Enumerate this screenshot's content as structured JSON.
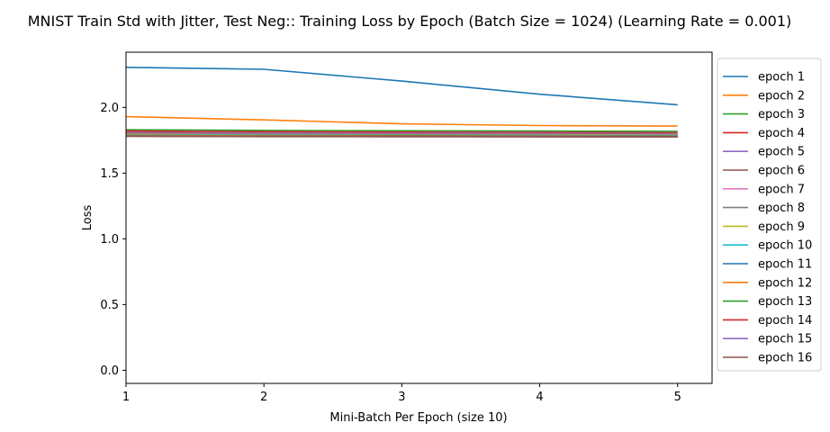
{
  "chart_data": {
    "type": "line",
    "title": "MNIST Train Std with Jitter, Test Neg:: Training Loss by Epoch (Batch Size = 1024) (Learning Rate = 0.001)",
    "xlabel": "Mini-Batch Per Epoch (size 10)",
    "ylabel": "Loss",
    "x": [
      1,
      2,
      3,
      4,
      5
    ],
    "xlim": [
      1,
      5.25
    ],
    "ylim": [
      -0.1,
      2.42
    ],
    "xticks": [
      1,
      2,
      3,
      4,
      5
    ],
    "yticks": [
      0.0,
      0.5,
      1.0,
      1.5,
      2.0
    ],
    "ytick_labels": [
      "0.0",
      "0.5",
      "1.0",
      "1.5",
      "2.0"
    ],
    "grid": false,
    "legend_position": "outside-right",
    "series": [
      {
        "name": "epoch 1",
        "color": "#1f77b4",
        "values": [
          2.305,
          2.29,
          2.2,
          2.1,
          2.02
        ]
      },
      {
        "name": "epoch 2",
        "color": "#ff7f0e",
        "values": [
          1.93,
          1.905,
          1.875,
          1.862,
          1.858
        ]
      },
      {
        "name": "epoch 3",
        "color": "#2ca02c",
        "values": [
          1.83,
          1.825,
          1.822,
          1.82,
          1.818
        ]
      },
      {
        "name": "epoch 4",
        "color": "#d62728",
        "values": [
          1.82,
          1.815,
          1.812,
          1.81,
          1.808
        ]
      },
      {
        "name": "epoch 5",
        "color": "#9467bd",
        "values": [
          1.81,
          1.806,
          1.804,
          1.802,
          1.8
        ]
      },
      {
        "name": "epoch 6",
        "color": "#8c564b",
        "values": [
          1.805,
          1.8,
          1.798,
          1.796,
          1.795
        ]
      },
      {
        "name": "epoch 7",
        "color": "#e377c2",
        "values": [
          1.8,
          1.797,
          1.795,
          1.793,
          1.792
        ]
      },
      {
        "name": "epoch 8",
        "color": "#7f7f7f",
        "values": [
          1.796,
          1.794,
          1.792,
          1.79,
          1.789
        ]
      },
      {
        "name": "epoch 9",
        "color": "#bcbd22",
        "values": [
          1.793,
          1.791,
          1.789,
          1.788,
          1.787
        ]
      },
      {
        "name": "epoch 10",
        "color": "#17becf",
        "values": [
          1.79,
          1.788,
          1.787,
          1.786,
          1.785
        ]
      },
      {
        "name": "epoch 11",
        "color": "#1f77b4",
        "values": [
          1.788,
          1.786,
          1.785,
          1.784,
          1.783
        ]
      },
      {
        "name": "epoch 12",
        "color": "#ff7f0e",
        "values": [
          1.786,
          1.784,
          1.783,
          1.782,
          1.781
        ]
      },
      {
        "name": "epoch 13",
        "color": "#2ca02c",
        "values": [
          1.784,
          1.782,
          1.781,
          1.78,
          1.779
        ]
      },
      {
        "name": "epoch 14",
        "color": "#d62728",
        "values": [
          1.782,
          1.78,
          1.779,
          1.778,
          1.777
        ]
      },
      {
        "name": "epoch 15",
        "color": "#9467bd",
        "values": [
          1.781,
          1.779,
          1.778,
          1.777,
          1.776
        ]
      },
      {
        "name": "epoch 16",
        "color": "#8c564b",
        "values": [
          1.78,
          1.778,
          1.777,
          1.776,
          1.775
        ]
      }
    ]
  }
}
